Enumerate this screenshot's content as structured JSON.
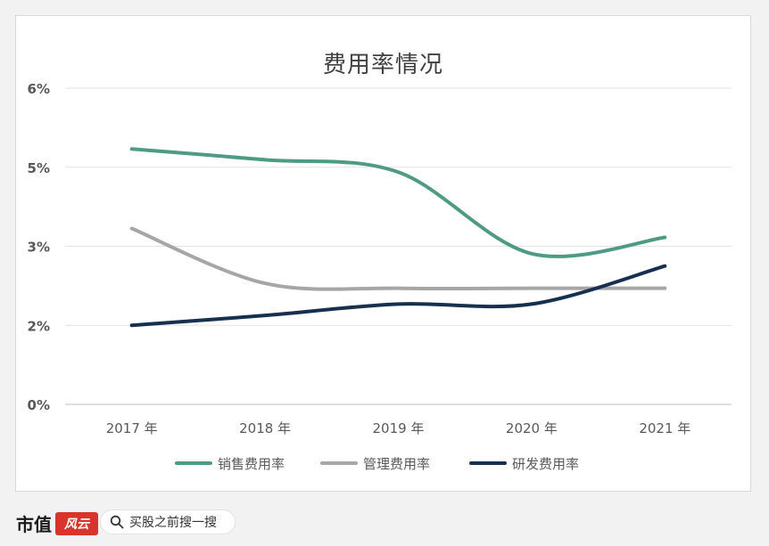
{
  "chart_data": {
    "type": "line",
    "title": "费用率情况",
    "x": [
      "2017 年",
      "2018 年",
      "2019 年",
      "2020 年",
      "2021 年"
    ],
    "y_ticks": [
      {
        "value": 0,
        "label": "0%"
      },
      {
        "value": 1.6,
        "label": "2%"
      },
      {
        "value": 3.2,
        "label": "3%"
      },
      {
        "value": 4.8,
        "label": "5%"
      },
      {
        "value": 6.4,
        "label": "6%"
      }
    ],
    "ylim": [
      0,
      6.4
    ],
    "grid": true,
    "legend_position": "bottom",
    "series": [
      {
        "name": "销售费用率",
        "color": "#4e9a84",
        "values": [
          5.17,
          4.95,
          4.7,
          3.05,
          3.38
        ]
      },
      {
        "name": "管理费用率",
        "color": "#a6a6a6",
        "values": [
          3.56,
          2.45,
          2.35,
          2.35,
          2.35
        ]
      },
      {
        "name": "研发费用率",
        "color": "#17304f",
        "values": [
          1.6,
          1.8,
          2.03,
          2.03,
          2.8
        ]
      }
    ]
  },
  "footer": {
    "brand": "市值",
    "brand_logo": "风云",
    "search_text": "买股之前搜一搜"
  }
}
